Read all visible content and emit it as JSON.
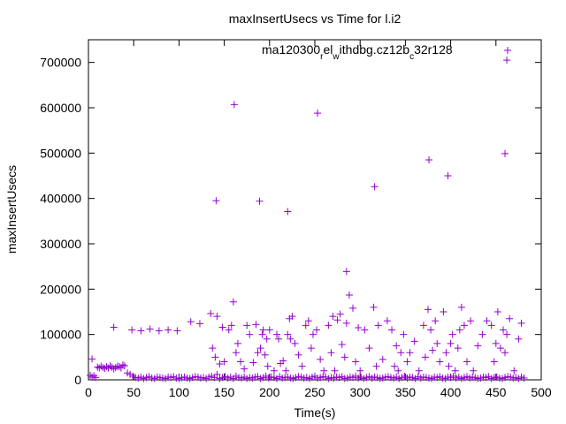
{
  "chart_data": {
    "type": "scatter",
    "title": "maxInsertUsecs vs Time for l.i2",
    "xlabel": "Time(s)",
    "ylabel": "maxInsertUsecs",
    "xlim": [
      0,
      500
    ],
    "ylim": [
      0,
      750000
    ],
    "xticks": [
      "0",
      "50",
      "100",
      "150",
      "200",
      "250",
      "300",
      "350",
      "400",
      "450",
      "500"
    ],
    "yticks": [
      "0",
      "100000",
      "200000",
      "300000",
      "400000",
      "500000",
      "600000",
      "700000"
    ],
    "grid": false,
    "legend_position": "top-right",
    "marker": "+",
    "color": "#9400d3",
    "series": [
      {
        "name": "ma120300_rel_withdbg.cz12b_c32r128",
        "legend_segments": [
          {
            "text": "ma120300",
            "shift": "base"
          },
          {
            "text": "r",
            "shift": "sub"
          },
          {
            "text": "el",
            "shift": "base"
          },
          {
            "text": "w",
            "shift": "sub"
          },
          {
            "text": "ithdbg.cz12b",
            "shift": "base"
          },
          {
            "text": "c",
            "shift": "sub"
          },
          {
            "text": "32r128",
            "shift": "base"
          }
        ],
        "x": [
          2,
          4,
          6,
          8,
          10,
          12,
          14,
          16,
          18,
          20,
          22,
          24,
          26,
          28,
          30,
          32,
          34,
          36,
          38,
          40,
          43,
          46,
          49,
          52,
          55,
          58,
          61,
          64,
          67,
          70,
          73,
          76,
          79,
          82,
          85,
          88,
          91,
          94,
          97,
          100,
          103,
          106,
          109,
          112,
          115,
          118,
          121,
          124,
          127,
          130,
          133,
          136,
          139,
          142,
          145,
          148,
          151,
          154,
          157,
          160,
          163,
          166,
          169,
          172,
          175,
          178,
          181,
          184,
          187,
          190,
          193,
          196,
          199,
          202,
          205,
          208,
          211,
          214,
          217,
          220,
          223,
          226,
          229,
          232,
          235,
          238,
          241,
          244,
          247,
          250,
          253,
          256,
          259,
          262,
          265,
          268,
          271,
          274,
          277,
          280,
          283,
          286,
          289,
          292,
          295,
          298,
          301,
          304,
          307,
          310,
          313,
          316,
          319,
          322,
          325,
          328,
          331,
          334,
          337,
          340,
          343,
          346,
          349,
          352,
          355,
          358,
          361,
          364,
          367,
          370,
          373,
          376,
          379,
          382,
          385,
          388,
          391,
          394,
          397,
          400,
          403,
          406,
          409,
          412,
          415,
          418,
          421,
          424,
          427,
          430,
          433,
          436,
          439,
          442,
          445,
          448,
          451,
          454,
          457,
          460,
          463,
          466,
          469,
          472,
          475,
          478,
          481,
          4,
          28,
          48,
          58,
          68,
          78,
          88,
          98,
          113,
          123,
          135,
          137,
          140,
          142,
          145,
          148,
          150,
          155,
          158,
          160,
          163,
          165,
          168,
          172,
          175,
          178,
          182,
          185,
          187,
          190,
          192,
          193,
          195,
          197,
          198,
          200,
          205,
          208,
          210,
          212,
          215,
          218,
          220,
          222,
          223,
          225,
          228,
          232,
          236,
          240,
          243,
          246,
          248,
          252,
          256,
          260,
          265,
          268,
          270,
          272,
          275,
          278,
          280,
          283,
          285,
          288,
          292,
          295,
          298,
          300,
          305,
          310,
          315,
          318,
          320,
          325,
          330,
          335,
          338,
          340,
          342,
          345,
          348,
          352,
          355,
          360,
          365,
          370,
          372,
          375,
          378,
          380,
          383,
          385,
          388,
          392,
          395,
          398,
          400,
          402,
          405,
          408,
          410,
          412,
          415,
          418,
          422,
          425,
          430,
          435,
          440,
          445,
          448,
          450,
          452,
          455,
          458,
          460,
          462,
          465,
          470,
          475,
          478,
          141,
          161,
          189,
          220,
          253,
          285,
          316,
          376,
          397,
          460,
          462
        ],
        "y": [
          10000,
          6000,
          9000,
          5000,
          28000,
          26000,
          30000,
          27000,
          25000,
          29000,
          26000,
          31000,
          28000,
          24000,
          27000,
          30000,
          29000,
          26000,
          33000,
          31000,
          15000,
          12000,
          8000,
          5000,
          4000,
          6000,
          3000,
          5000,
          7000,
          4000,
          3000,
          6000,
          5000,
          4000,
          3000,
          6000,
          5000,
          7000,
          4000,
          3000,
          5000,
          6000,
          4000,
          3000,
          5000,
          7000,
          6000,
          4000,
          5000,
          3000,
          6000,
          8000,
          5000,
          12000,
          3000,
          5000,
          7000,
          4000,
          6000,
          3000,
          8000,
          5000,
          4000,
          6000,
          3000,
          5000,
          4000,
          6000,
          7000,
          3000,
          5000,
          8000,
          4000,
          6000,
          5000,
          3000,
          7000,
          4000,
          5000,
          6000,
          4000,
          3000,
          5000,
          7000,
          6000,
          4000,
          5000,
          3000,
          6000,
          8000,
          4000,
          5000,
          7000,
          6000,
          3000,
          5000,
          4000,
          6000,
          5000,
          7000,
          3000,
          4000,
          6000,
          5000,
          8000,
          4000,
          6000,
          3000,
          5000,
          7000,
          4000,
          6000,
          5000,
          3000,
          4000,
          6000,
          7000,
          5000,
          4000,
          6000,
          3000,
          5000,
          8000,
          4000,
          6000,
          5000,
          3000,
          7000,
          4000,
          6000,
          5000,
          4000,
          3000,
          6000,
          5000,
          7000,
          4000,
          3000,
          6000,
          5000,
          8000,
          4000,
          6000,
          3000,
          5000,
          7000,
          4000,
          6000,
          5000,
          3000,
          4000,
          6000,
          5000,
          7000,
          3000,
          5000,
          6000,
          4000,
          3000,
          5000,
          7000,
          6000,
          4000,
          5000,
          3000,
          6000,
          4000,
          46000,
          116000,
          110000,
          108000,
          112000,
          108000,
          110000,
          108000,
          128000,
          124000,
          146000,
          70000,
          50000,
          140000,
          35000,
          116000,
          40000,
          110000,
          120000,
          172000,
          60000,
          80000,
          40000,
          24000,
          120000,
          100000,
          38000,
          122000,
          60000,
          70000,
          100000,
          110000,
          55000,
          90000,
          30000,
          110000,
          20000,
          100000,
          90000,
          36000,
          42000,
          20000,
          100000,
          135000,
          90000,
          140000,
          80000,
          55000,
          30000,
          120000,
          130000,
          70000,
          100000,
          110000,
          45000,
          20000,
          120000,
          60000,
          140000,
          20000,
          132000,
          145000,
          78000,
          50000,
          125000,
          187000,
          158000,
          40000,
          115000,
          20000,
          110000,
          70000,
          160000,
          30000,
          120000,
          45000,
          130000,
          110000,
          30000,
          75000,
          20000,
          60000,
          100000,
          40000,
          60000,
          85000,
          20000,
          120000,
          50000,
          155000,
          110000,
          65000,
          130000,
          80000,
          40000,
          150000,
          60000,
          30000,
          80000,
          100000,
          20000,
          70000,
          110000,
          160000,
          120000,
          40000,
          130000,
          20000,
          75000,
          100000,
          130000,
          120000,
          40000,
          80000,
          150000,
          70000,
          110000,
          60000,
          100000,
          135000,
          20000,
          90000,
          125000,
          395000,
          607000,
          394000,
          371000,
          588000,
          239000,
          426000,
          485000,
          450000,
          499000,
          705000
        ]
      }
    ]
  }
}
